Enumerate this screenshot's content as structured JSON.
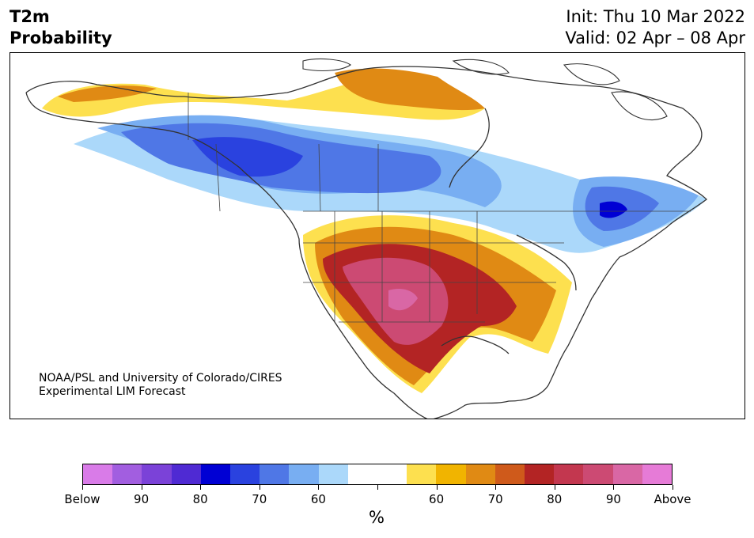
{
  "title": {
    "left_line1": "T2m",
    "left_line2": "Probability",
    "right_line1": "Init: Thu 10 Mar 2022",
    "right_line2": "Valid: 02 Apr – 08 Apr"
  },
  "credit": {
    "line1": "NOAA/PSL and University of Colorado/CIRES",
    "line2": "Experimental LIM Forecast"
  },
  "colorbar": {
    "unit": "%",
    "colors": [
      "#d97be8",
      "#a25ee0",
      "#7b42d8",
      "#4f2ad3",
      "#0000d4",
      "#2a42df",
      "#4f77e6",
      "#78aef2",
      "#abd8fa",
      "#ffffff",
      "#ffffff",
      "#fde04f",
      "#f1b400",
      "#e08a14",
      "#cf5a1b",
      "#b32424",
      "#c3374f",
      "#cc4a73",
      "#d967a5",
      "#e67bd7"
    ],
    "labels": [
      "Below",
      "90",
      "80",
      "70",
      "60",
      "",
      "60",
      "70",
      "80",
      "90",
      "Above"
    ]
  },
  "legend_map": {
    "below_normal": "blue shades",
    "above_normal": "orange-red-magenta shades"
  }
}
